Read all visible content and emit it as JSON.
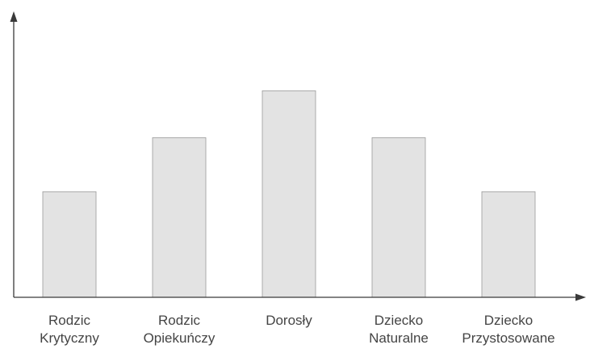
{
  "chart_data": {
    "type": "bar",
    "categories": [
      [
        "Rodzic",
        "Krytyczny"
      ],
      [
        "Rodzic",
        "Opiekuńczy"
      ],
      [
        "Dorosły"
      ],
      [
        "Dziecko",
        "Naturalne"
      ],
      [
        "Dziecko",
        "Przystosowane"
      ]
    ],
    "values": [
      2.25,
      3.4,
      4.4,
      3.4,
      2.25
    ],
    "title": "",
    "xlabel": "",
    "ylabel": "",
    "ylim": [
      0,
      5.8
    ],
    "grid": false,
    "legend": null,
    "y_ticks_shown": false,
    "colors": {
      "bar_fill": "#e3e3e3",
      "bar_stroke": "#9a9a9a",
      "axis": "#3a3a3a",
      "text": "#444444"
    }
  }
}
